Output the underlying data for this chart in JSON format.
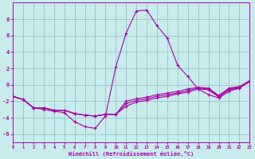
{
  "xlabel": "Windchill (Refroidissement éolien,°C)",
  "background_color": "#c8ecec",
  "grid_color": "#a0c8c8",
  "line_color": "#aa00aa",
  "xlim": [
    0,
    23
  ],
  "ylim": [
    -7,
    10
  ],
  "yticks": [
    -6,
    -4,
    -2,
    0,
    2,
    4,
    6,
    8
  ],
  "xticks": [
    0,
    1,
    2,
    3,
    4,
    5,
    6,
    7,
    8,
    9,
    10,
    11,
    12,
    13,
    14,
    15,
    16,
    17,
    18,
    19,
    20,
    21,
    22,
    23
  ],
  "curves": [
    {
      "x": [
        0,
        1,
        2,
        3,
        4,
        5,
        6,
        7,
        8,
        9,
        10,
        11,
        12,
        13,
        14,
        15,
        16,
        17,
        18,
        19,
        20,
        21,
        22,
        23
      ],
      "y": [
        -1.4,
        -1.8,
        -2.8,
        -2.8,
        -3.1,
        -3.1,
        -3.5,
        -3.7,
        -3.8,
        -3.6,
        -3.6,
        -2.0,
        -1.7,
        -1.5,
        -1.2,
        -1.0,
        -0.8,
        -0.5,
        -0.3,
        -0.4,
        -1.3,
        -0.4,
        -0.2,
        0.5
      ]
    },
    {
      "x": [
        0,
        1,
        2,
        3,
        4,
        5,
        6,
        7,
        8,
        9,
        10,
        11,
        12,
        13,
        14,
        15,
        16,
        17,
        18,
        19,
        20,
        21,
        22,
        23
      ],
      "y": [
        -1.4,
        -1.8,
        -2.8,
        -2.8,
        -3.1,
        -3.1,
        -3.5,
        -3.7,
        -3.8,
        -3.6,
        -3.6,
        -2.3,
        -1.9,
        -1.7,
        -1.4,
        -1.2,
        -1.0,
        -0.7,
        -0.4,
        -0.5,
        -1.4,
        -0.5,
        -0.3,
        0.4
      ]
    },
    {
      "x": [
        0,
        1,
        2,
        3,
        4,
        5,
        6,
        7,
        8,
        9,
        10,
        11,
        12,
        13,
        14,
        15,
        16,
        17,
        18,
        19,
        20,
        21,
        22,
        23
      ],
      "y": [
        -1.4,
        -1.8,
        -2.8,
        -2.8,
        -3.1,
        -3.1,
        -3.5,
        -3.7,
        -3.8,
        -3.6,
        -3.6,
        -2.6,
        -2.1,
        -1.9,
        -1.6,
        -1.4,
        -1.1,
        -0.9,
        -0.5,
        -0.6,
        -1.5,
        -0.6,
        -0.4,
        0.4
      ]
    },
    {
      "x": [
        0,
        1,
        2,
        3,
        4,
        5,
        6,
        7,
        8,
        9,
        10,
        11,
        12,
        13,
        14,
        15,
        16,
        17,
        18,
        19,
        20,
        21,
        22,
        23
      ],
      "y": [
        -1.4,
        -1.8,
        -2.8,
        -3.0,
        -3.2,
        -3.4,
        -4.5,
        -5.1,
        -5.3,
        -3.8,
        2.2,
        6.3,
        9.0,
        9.1,
        7.2,
        5.7,
        2.4,
        1.0,
        -0.5,
        -1.2,
        -1.6,
        -0.8,
        -0.4,
        0.5
      ]
    }
  ]
}
